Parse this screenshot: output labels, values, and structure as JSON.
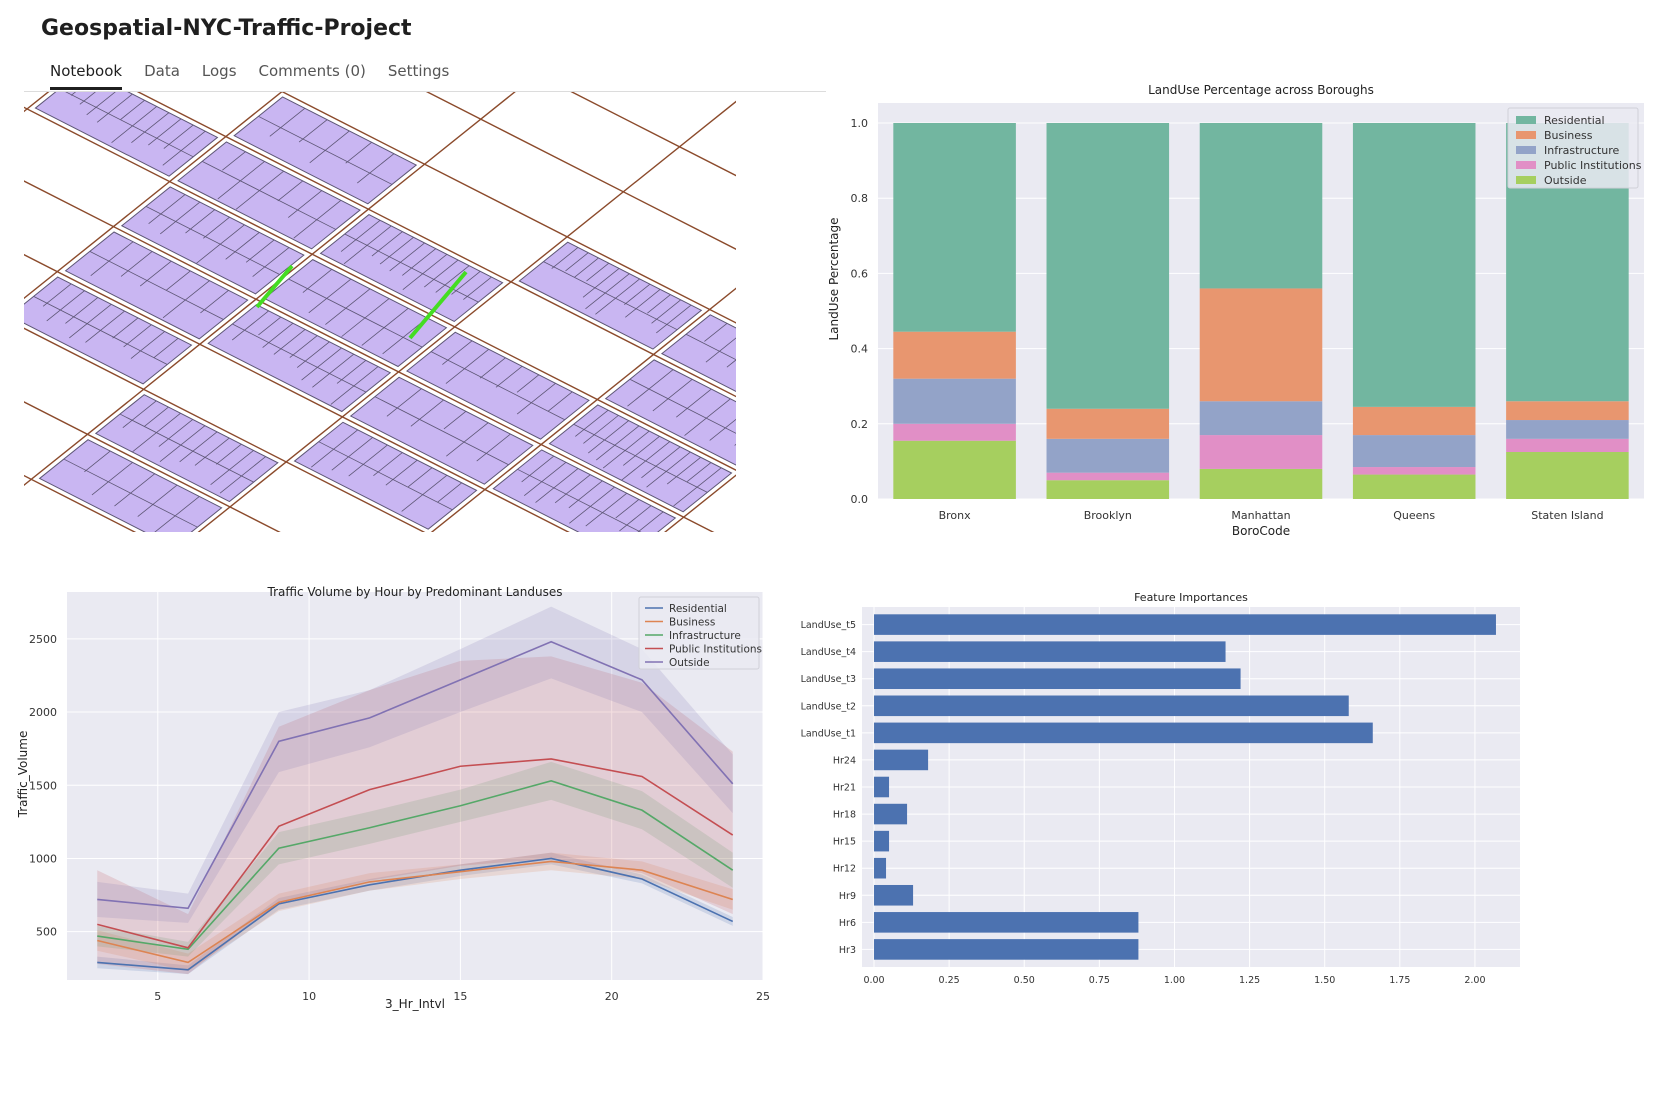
{
  "app": {
    "title": "Geospatial-NYC-Traffic-Project"
  },
  "tabs": [
    {
      "label": "Notebook",
      "active": true
    },
    {
      "label": "Data",
      "active": false
    },
    {
      "label": "Logs",
      "active": false
    },
    {
      "label": "Comments (0)",
      "active": false
    },
    {
      "label": "Settings",
      "active": false
    }
  ],
  "map": {
    "parcel_color": "#c9b6f2",
    "street_color": "#8b4a2b",
    "highlight_color": "#44dd22"
  },
  "colors": {
    "plot_bg": "#eaeaf2",
    "bar_blue": "#4c72b0"
  },
  "chart_data": [
    {
      "type": "bar",
      "stacked": true,
      "title": "LandUse Percentage across Boroughs",
      "xlabel": "BoroCode",
      "ylabel": "LandUse Percentage",
      "ylim": [
        0,
        1.0
      ],
      "yticks": [
        "0.0",
        "0.2",
        "0.4",
        "0.6",
        "0.8",
        "1.0"
      ],
      "categories": [
        "Bronx",
        "Brooklyn",
        "Manhattan",
        "Queens",
        "Staten Island"
      ],
      "legend_position": "top-right",
      "series": [
        {
          "name": "Outside",
          "color": "#a6cf5f",
          "values": [
            0.155,
            0.05,
            0.08,
            0.065,
            0.125
          ]
        },
        {
          "name": "Public Institutions",
          "color": "#e18fc6",
          "values": [
            0.045,
            0.02,
            0.09,
            0.02,
            0.035
          ]
        },
        {
          "name": "Infrastructure",
          "color": "#93a3c8",
          "values": [
            0.12,
            0.09,
            0.09,
            0.085,
            0.05
          ]
        },
        {
          "name": "Business",
          "color": "#e8966f",
          "values": [
            0.125,
            0.08,
            0.3,
            0.075,
            0.05
          ]
        },
        {
          "name": "Residential",
          "color": "#72b6a0",
          "values": [
            0.555,
            0.76,
            0.44,
            0.755,
            0.74
          ]
        }
      ],
      "legend_order": [
        "Residential",
        "Business",
        "Infrastructure",
        "Public Institutions",
        "Outside"
      ]
    },
    {
      "type": "line",
      "title": "Traffic Volume by Hour by Predominant Landuses",
      "xlabel": "3_Hr_Intvl",
      "ylabel": "Traffic_Volume",
      "xlim": [
        2.0,
        25.0
      ],
      "ylim": [
        170,
        2820
      ],
      "xticks": [
        "5",
        "10",
        "15",
        "20",
        "25"
      ],
      "yticks": [
        "500",
        "1000",
        "1500",
        "2000",
        "2500"
      ],
      "x": [
        3,
        6,
        9,
        12,
        15,
        18,
        21,
        24
      ],
      "legend_position": "top-right",
      "series": [
        {
          "name": "Residential",
          "color": "#4c72b0",
          "values": [
            290,
            240,
            690,
            820,
            920,
            1000,
            860,
            570
          ],
          "lower": [
            250,
            210,
            650,
            780,
            880,
            960,
            830,
            540
          ],
          "upper": [
            330,
            270,
            730,
            860,
            960,
            1040,
            890,
            600
          ]
        },
        {
          "name": "Business",
          "color": "#dd8452",
          "values": [
            440,
            290,
            700,
            840,
            910,
            980,
            920,
            720
          ],
          "lower": [
            370,
            230,
            640,
            780,
            860,
            920,
            860,
            650
          ],
          "upper": [
            510,
            350,
            760,
            900,
            960,
            1040,
            980,
            790
          ]
        },
        {
          "name": "Infrastructure",
          "color": "#55a868",
          "values": [
            470,
            380,
            1070,
            1210,
            1360,
            1530,
            1330,
            920
          ],
          "lower": [
            400,
            330,
            960,
            1100,
            1250,
            1400,
            1200,
            800
          ],
          "upper": [
            540,
            430,
            1180,
            1320,
            1470,
            1660,
            1460,
            1040
          ]
        },
        {
          "name": "Public Institutions",
          "color": "#c44e52",
          "values": [
            550,
            390,
            1220,
            1470,
            1630,
            1680,
            1560,
            1160
          ],
          "lower": [
            280,
            210,
            700,
            850,
            950,
            1000,
            900,
            620
          ],
          "upper": [
            920,
            620,
            1900,
            2150,
            2350,
            2380,
            2200,
            1730
          ]
        },
        {
          "name": "Outside",
          "color": "#8172b3",
          "values": [
            720,
            660,
            1800,
            1960,
            2220,
            2480,
            2220,
            1510
          ],
          "lower": [
            600,
            560,
            1590,
            1760,
            2000,
            2230,
            2000,
            1310
          ],
          "upper": [
            840,
            760,
            2000,
            2150,
            2430,
            2720,
            2430,
            1710
          ]
        }
      ]
    },
    {
      "type": "bar",
      "orientation": "horizontal",
      "title": "Feature Importances",
      "xlim": [
        -0.04,
        2.15
      ],
      "xticks": [
        "0.00",
        "0.25",
        "0.50",
        "0.75",
        "1.00",
        "1.25",
        "1.50",
        "1.75",
        "2.00"
      ],
      "color": "#4c72b0",
      "categories": [
        "LandUse_t5",
        "LandUse_t4",
        "LandUse_t3",
        "LandUse_t2",
        "LandUse_t1",
        "Hr24",
        "Hr21",
        "Hr18",
        "Hr15",
        "Hr12",
        "Hr9",
        "Hr6",
        "Hr3"
      ],
      "values": [
        2.07,
        1.17,
        1.22,
        1.58,
        1.66,
        0.18,
        0.05,
        0.11,
        0.05,
        0.04,
        0.13,
        0.88,
        0.88
      ]
    }
  ]
}
